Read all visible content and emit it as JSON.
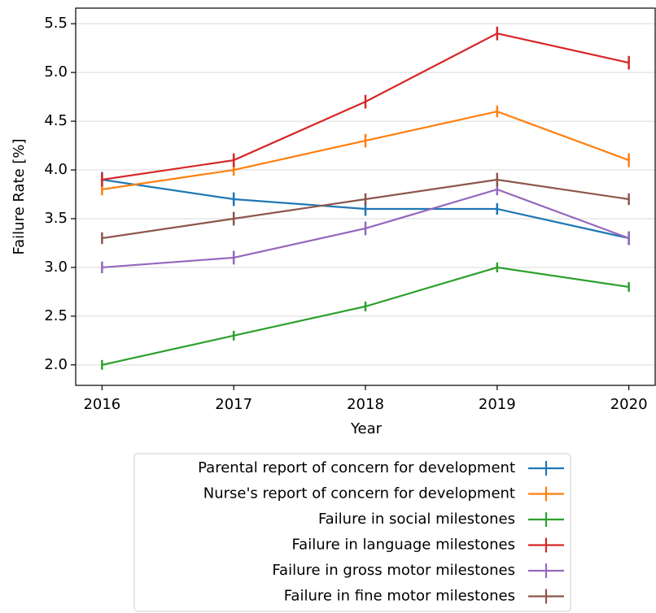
{
  "chart_data": {
    "type": "line",
    "xlabel": "Year",
    "ylabel": "Failure Rate [%]",
    "x": [
      2016,
      2017,
      2018,
      2019,
      2020
    ],
    "series": [
      {
        "name": "Parental report of concern for development",
        "color": "#1f77b4",
        "values": [
          3.9,
          3.7,
          3.6,
          3.6,
          3.3
        ],
        "errors": [
          0.08,
          0.07,
          0.07,
          0.06,
          0.07
        ]
      },
      {
        "name": "Nurse's report of concern for development",
        "color": "#ff7f0e",
        "values": [
          3.8,
          4.0,
          4.3,
          4.6,
          4.1
        ],
        "errors": [
          0.06,
          0.06,
          0.07,
          0.06,
          0.07
        ]
      },
      {
        "name": "Failure in social milestones",
        "color": "#2ca02c",
        "values": [
          2.0,
          2.3,
          2.6,
          3.0,
          2.8
        ],
        "errors": [
          0.05,
          0.05,
          0.05,
          0.05,
          0.05
        ]
      },
      {
        "name": "Failure in language milestones",
        "color": "#d62728",
        "values": [
          3.9,
          4.1,
          4.7,
          5.4,
          5.1
        ],
        "errors": [
          0.07,
          0.07,
          0.07,
          0.07,
          0.07
        ]
      },
      {
        "name": "Failure in gross motor milestones",
        "color": "#9467bd",
        "values": [
          3.0,
          3.1,
          3.4,
          3.8,
          3.3
        ],
        "errors": [
          0.06,
          0.07,
          0.07,
          0.06,
          0.07
        ]
      },
      {
        "name": "Failure in fine motor milestones",
        "color": "#8c564b",
        "values": [
          3.3,
          3.5,
          3.7,
          3.9,
          3.7
        ],
        "errors": [
          0.06,
          0.07,
          0.06,
          0.07,
          0.06
        ]
      }
    ],
    "xlim": [
      2015.8,
      2020.2
    ],
    "xticks": [
      2016,
      2017,
      2018,
      2019,
      2020
    ],
    "ylim": [
      1.79,
      5.66
    ],
    "yticks": [
      {
        "value": 2,
        "label": "2.0"
      },
      2.5,
      {
        "value": 3,
        "label": "3.0"
      },
      3.5,
      {
        "value": 4,
        "label": "4.0"
      },
      4.5,
      {
        "value": 5,
        "label": "5.0"
      },
      5.5
    ],
    "grid": true,
    "legend": "below"
  }
}
